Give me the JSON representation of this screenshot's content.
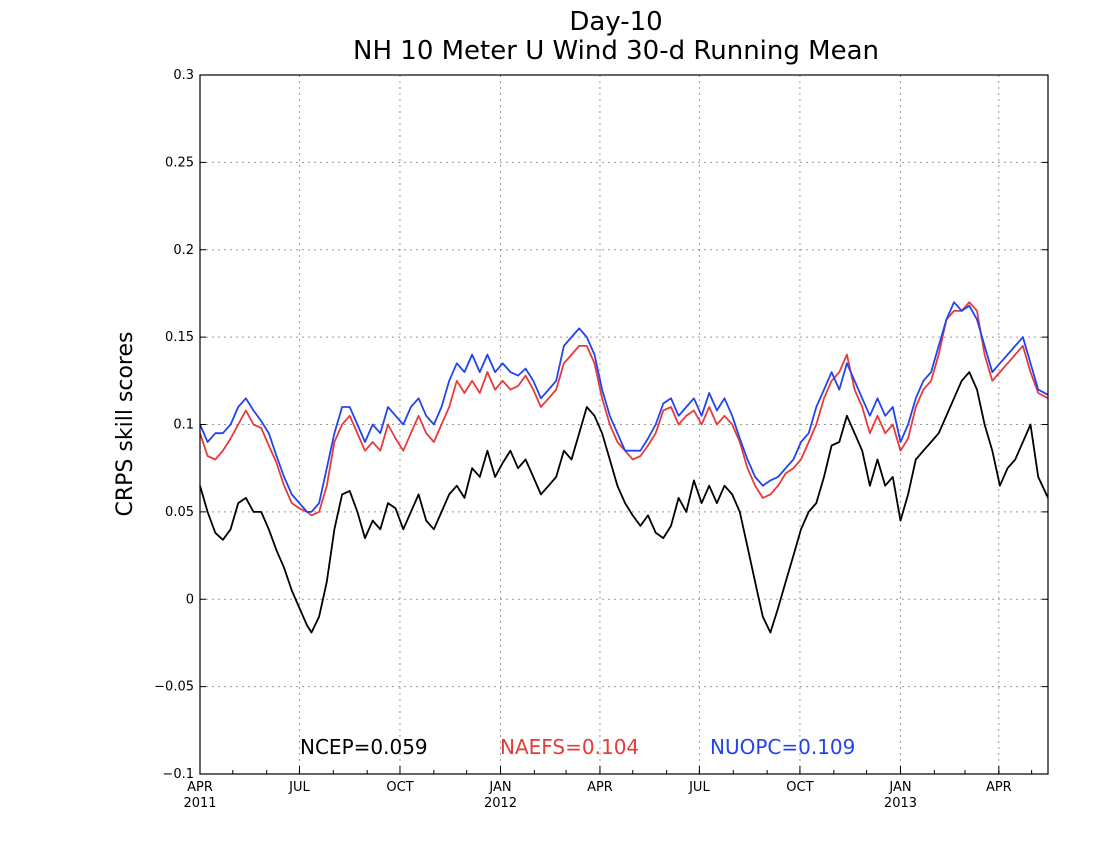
{
  "chart_data": {
    "type": "line",
    "title": "Day-10",
    "subtitle": "NH 10 Meter U Wind 30-d Running Mean",
    "xlabel": "",
    "ylabel": "CRPS skill scores",
    "ylim": [
      -0.1,
      0.3
    ],
    "yticks": [
      -0.1,
      -0.05,
      0,
      0.05,
      0.1,
      0.15,
      0.2,
      0.25,
      0.3
    ],
    "ytick_labels": [
      "−0.1",
      "−0.05",
      "0",
      "0.05",
      "0.1",
      "0.15",
      "0.2",
      "0.25",
      "0.3"
    ],
    "xlim": [
      "2011-04-01",
      "2013-05-16"
    ],
    "xticks": [
      {
        "date": "2011-04-01",
        "label": "APR",
        "year": "2011"
      },
      {
        "date": "2011-07-01",
        "label": "JUL",
        "year": ""
      },
      {
        "date": "2011-10-01",
        "label": "OCT",
        "year": ""
      },
      {
        "date": "2012-01-01",
        "label": "JAN",
        "year": "2012"
      },
      {
        "date": "2012-04-01",
        "label": "APR",
        "year": ""
      },
      {
        "date": "2012-07-01",
        "label": "JUL",
        "year": ""
      },
      {
        "date": "2012-10-01",
        "label": "OCT",
        "year": ""
      },
      {
        "date": "2013-01-01",
        "label": "JAN",
        "year": "2013"
      },
      {
        "date": "2013-04-01",
        "label": "APR",
        "year": ""
      }
    ],
    "grid": true,
    "series": [
      {
        "name": "NCEP",
        "color": "#000000",
        "stat_label": "NCEP=0.059",
        "x": [
          "2011-04-01",
          "2011-04-08",
          "2011-04-15",
          "2011-04-22",
          "2011-04-29",
          "2011-05-06",
          "2011-05-13",
          "2011-05-20",
          "2011-05-27",
          "2011-06-03",
          "2011-06-10",
          "2011-06-17",
          "2011-06-24",
          "2011-07-01",
          "2011-07-08",
          "2011-07-12",
          "2011-07-19",
          "2011-07-26",
          "2011-08-02",
          "2011-08-09",
          "2011-08-16",
          "2011-08-23",
          "2011-08-30",
          "2011-09-06",
          "2011-09-13",
          "2011-09-20",
          "2011-09-27",
          "2011-10-04",
          "2011-10-11",
          "2011-10-18",
          "2011-10-25",
          "2011-11-01",
          "2011-11-08",
          "2011-11-15",
          "2011-11-22",
          "2011-11-29",
          "2011-12-06",
          "2011-12-13",
          "2011-12-20",
          "2011-12-27",
          "2012-01-03",
          "2012-01-10",
          "2012-01-17",
          "2012-01-24",
          "2012-01-31",
          "2012-02-07",
          "2012-02-14",
          "2012-02-21",
          "2012-02-28",
          "2012-03-06",
          "2012-03-13",
          "2012-03-20",
          "2012-03-27",
          "2012-04-03",
          "2012-04-10",
          "2012-04-17",
          "2012-04-24",
          "2012-05-01",
          "2012-05-08",
          "2012-05-15",
          "2012-05-22",
          "2012-05-29",
          "2012-06-05",
          "2012-06-12",
          "2012-06-19",
          "2012-06-26",
          "2012-07-03",
          "2012-07-10",
          "2012-07-17",
          "2012-07-24",
          "2012-07-31",
          "2012-08-07",
          "2012-08-14",
          "2012-08-21",
          "2012-08-28",
          "2012-09-04",
          "2012-09-11",
          "2012-09-18",
          "2012-09-25",
          "2012-10-02",
          "2012-10-09",
          "2012-10-16",
          "2012-10-23",
          "2012-10-30",
          "2012-11-06",
          "2012-11-13",
          "2012-11-20",
          "2012-11-27",
          "2012-12-04",
          "2012-12-11",
          "2012-12-18",
          "2012-12-25",
          "2013-01-01",
          "2013-01-08",
          "2013-01-15",
          "2013-01-22",
          "2013-01-29",
          "2013-02-05",
          "2013-02-12",
          "2013-02-19",
          "2013-02-26",
          "2013-03-05",
          "2013-03-12",
          "2013-03-19",
          "2013-03-26",
          "2013-04-02",
          "2013-04-09",
          "2013-04-16",
          "2013-04-23",
          "2013-04-30",
          "2013-05-07",
          "2013-05-16"
        ],
        "y": [
          0.065,
          0.05,
          0.038,
          0.034,
          0.04,
          0.055,
          0.058,
          0.05,
          0.05,
          0.04,
          0.028,
          0.018,
          0.005,
          -0.005,
          -0.015,
          -0.019,
          -0.01,
          0.01,
          0.04,
          0.06,
          0.062,
          0.05,
          0.035,
          0.045,
          0.04,
          0.055,
          0.052,
          0.04,
          0.05,
          0.06,
          0.045,
          0.04,
          0.05,
          0.06,
          0.065,
          0.058,
          0.075,
          0.07,
          0.085,
          0.07,
          0.078,
          0.085,
          0.075,
          0.08,
          0.07,
          0.06,
          0.065,
          0.07,
          0.085,
          0.08,
          0.095,
          0.11,
          0.105,
          0.095,
          0.08,
          0.065,
          0.055,
          0.048,
          0.042,
          0.048,
          0.038,
          0.035,
          0.042,
          0.058,
          0.05,
          0.068,
          0.055,
          0.065,
          0.055,
          0.065,
          0.06,
          0.05,
          0.03,
          0.01,
          -0.01,
          -0.019,
          -0.005,
          0.01,
          0.025,
          0.04,
          0.05,
          0.055,
          0.07,
          0.088,
          0.09,
          0.105,
          0.095,
          0.085,
          0.065,
          0.08,
          0.065,
          0.07,
          0.045,
          0.06,
          0.08,
          0.085,
          0.09,
          0.095,
          0.105,
          0.115,
          0.125,
          0.13,
          0.12,
          0.1,
          0.085,
          0.065,
          0.075,
          0.08,
          0.09,
          0.1,
          0.07,
          0.058
        ]
      },
      {
        "name": "NAEFS",
        "color": "#e83a3a",
        "stat_label": "NAEFS=0.104",
        "x": [
          "2011-04-01",
          "2011-04-08",
          "2011-04-15",
          "2011-04-22",
          "2011-04-29",
          "2011-05-06",
          "2011-05-13",
          "2011-05-20",
          "2011-05-27",
          "2011-06-03",
          "2011-06-10",
          "2011-06-17",
          "2011-06-24",
          "2011-07-01",
          "2011-07-08",
          "2011-07-12",
          "2011-07-19",
          "2011-07-26",
          "2011-08-02",
          "2011-08-09",
          "2011-08-16",
          "2011-08-23",
          "2011-08-30",
          "2011-09-06",
          "2011-09-13",
          "2011-09-20",
          "2011-09-27",
          "2011-10-04",
          "2011-10-11",
          "2011-10-18",
          "2011-10-25",
          "2011-11-01",
          "2011-11-08",
          "2011-11-15",
          "2011-11-22",
          "2011-11-29",
          "2011-12-06",
          "2011-12-13",
          "2011-12-20",
          "2011-12-27",
          "2012-01-03",
          "2012-01-10",
          "2012-01-17",
          "2012-01-24",
          "2012-01-31",
          "2012-02-07",
          "2012-02-14",
          "2012-02-21",
          "2012-02-28",
          "2012-03-06",
          "2012-03-13",
          "2012-03-20",
          "2012-03-27",
          "2012-04-03",
          "2012-04-10",
          "2012-04-17",
          "2012-04-24",
          "2012-05-01",
          "2012-05-08",
          "2012-05-15",
          "2012-05-22",
          "2012-05-29",
          "2012-06-05",
          "2012-06-12",
          "2012-06-19",
          "2012-06-26",
          "2012-07-03",
          "2012-07-10",
          "2012-07-17",
          "2012-07-24",
          "2012-07-31",
          "2012-08-07",
          "2012-08-14",
          "2012-08-21",
          "2012-08-28",
          "2012-09-04",
          "2012-09-11",
          "2012-09-18",
          "2012-09-25",
          "2012-10-02",
          "2012-10-09",
          "2012-10-16",
          "2012-10-23",
          "2012-10-30",
          "2012-11-06",
          "2012-11-13",
          "2012-11-20",
          "2012-11-27",
          "2012-12-04",
          "2012-12-11",
          "2012-12-18",
          "2012-12-25",
          "2013-01-01",
          "2013-01-08",
          "2013-01-15",
          "2013-01-22",
          "2013-01-29",
          "2013-02-05",
          "2013-02-12",
          "2013-02-19",
          "2013-02-26",
          "2013-03-05",
          "2013-03-12",
          "2013-03-19",
          "2013-03-26",
          "2013-04-02",
          "2013-04-09",
          "2013-04-16",
          "2013-04-23",
          "2013-04-30",
          "2013-05-07",
          "2013-05-16"
        ],
        "y": [
          0.095,
          0.082,
          0.08,
          0.085,
          0.092,
          0.1,
          0.108,
          0.1,
          0.098,
          0.088,
          0.078,
          0.065,
          0.055,
          0.052,
          0.05,
          0.048,
          0.05,
          0.065,
          0.09,
          0.1,
          0.105,
          0.095,
          0.085,
          0.09,
          0.085,
          0.1,
          0.092,
          0.085,
          0.095,
          0.105,
          0.095,
          0.09,
          0.1,
          0.11,
          0.125,
          0.118,
          0.125,
          0.118,
          0.13,
          0.12,
          0.125,
          0.12,
          0.122,
          0.128,
          0.12,
          0.11,
          0.115,
          0.12,
          0.135,
          0.14,
          0.145,
          0.145,
          0.135,
          0.115,
          0.1,
          0.09,
          0.085,
          0.08,
          0.082,
          0.088,
          0.095,
          0.108,
          0.11,
          0.1,
          0.105,
          0.108,
          0.1,
          0.11,
          0.1,
          0.105,
          0.1,
          0.09,
          0.075,
          0.065,
          0.058,
          0.06,
          0.065,
          0.072,
          0.075,
          0.08,
          0.09,
          0.1,
          0.115,
          0.125,
          0.13,
          0.14,
          0.12,
          0.11,
          0.095,
          0.105,
          0.095,
          0.1,
          0.085,
          0.092,
          0.11,
          0.12,
          0.125,
          0.14,
          0.16,
          0.165,
          0.165,
          0.17,
          0.165,
          0.14,
          0.125,
          0.13,
          0.135,
          0.14,
          0.145,
          0.13,
          0.118,
          0.115
        ]
      },
      {
        "name": "NUOPC",
        "color": "#2244ee",
        "stat_label": "NUOPC=0.109",
        "x": [
          "2011-04-01",
          "2011-04-08",
          "2011-04-15",
          "2011-04-22",
          "2011-04-29",
          "2011-05-06",
          "2011-05-13",
          "2011-05-20",
          "2011-05-27",
          "2011-06-03",
          "2011-06-10",
          "2011-06-17",
          "2011-06-24",
          "2011-07-01",
          "2011-07-08",
          "2011-07-12",
          "2011-07-19",
          "2011-07-26",
          "2011-08-02",
          "2011-08-09",
          "2011-08-16",
          "2011-08-23",
          "2011-08-30",
          "2011-09-06",
          "2011-09-13",
          "2011-09-20",
          "2011-09-27",
          "2011-10-04",
          "2011-10-11",
          "2011-10-18",
          "2011-10-25",
          "2011-11-01",
          "2011-11-08",
          "2011-11-15",
          "2011-11-22",
          "2011-11-29",
          "2011-12-06",
          "2011-12-13",
          "2011-12-20",
          "2011-12-27",
          "2012-01-03",
          "2012-01-10",
          "2012-01-17",
          "2012-01-24",
          "2012-01-31",
          "2012-02-07",
          "2012-02-14",
          "2012-02-21",
          "2012-02-28",
          "2012-03-06",
          "2012-03-13",
          "2012-03-20",
          "2012-03-27",
          "2012-04-03",
          "2012-04-10",
          "2012-04-17",
          "2012-04-24",
          "2012-05-01",
          "2012-05-08",
          "2012-05-15",
          "2012-05-22",
          "2012-05-29",
          "2012-06-05",
          "2012-06-12",
          "2012-06-19",
          "2012-06-26",
          "2012-07-03",
          "2012-07-10",
          "2012-07-17",
          "2012-07-24",
          "2012-07-31",
          "2012-08-07",
          "2012-08-14",
          "2012-08-21",
          "2012-08-28",
          "2012-09-04",
          "2012-09-11",
          "2012-09-18",
          "2012-09-25",
          "2012-10-02",
          "2012-10-09",
          "2012-10-16",
          "2012-10-23",
          "2012-10-30",
          "2012-11-06",
          "2012-11-13",
          "2012-11-20",
          "2012-11-27",
          "2012-12-04",
          "2012-12-11",
          "2012-12-18",
          "2012-12-25",
          "2013-01-01",
          "2013-01-08",
          "2013-01-15",
          "2013-01-22",
          "2013-01-29",
          "2013-02-05",
          "2013-02-12",
          "2013-02-19",
          "2013-02-26",
          "2013-03-05",
          "2013-03-12",
          "2013-03-19",
          "2013-03-26",
          "2013-04-02",
          "2013-04-09",
          "2013-04-16",
          "2013-04-23",
          "2013-04-30",
          "2013-05-07",
          "2013-05-16"
        ],
        "y": [
          0.1,
          0.09,
          0.095,
          0.095,
          0.1,
          0.11,
          0.115,
          0.108,
          0.102,
          0.095,
          0.082,
          0.07,
          0.06,
          0.055,
          0.05,
          0.05,
          0.055,
          0.075,
          0.095,
          0.11,
          0.11,
          0.1,
          0.09,
          0.1,
          0.095,
          0.11,
          0.105,
          0.1,
          0.11,
          0.115,
          0.105,
          0.1,
          0.11,
          0.125,
          0.135,
          0.13,
          0.14,
          0.13,
          0.14,
          0.13,
          0.135,
          0.13,
          0.128,
          0.132,
          0.125,
          0.115,
          0.12,
          0.125,
          0.145,
          0.15,
          0.155,
          0.15,
          0.14,
          0.12,
          0.105,
          0.095,
          0.085,
          0.085,
          0.085,
          0.092,
          0.1,
          0.112,
          0.115,
          0.105,
          0.11,
          0.115,
          0.105,
          0.118,
          0.108,
          0.115,
          0.105,
          0.092,
          0.08,
          0.07,
          0.065,
          0.068,
          0.07,
          0.075,
          0.08,
          0.09,
          0.095,
          0.11,
          0.12,
          0.13,
          0.12,
          0.135,
          0.125,
          0.115,
          0.105,
          0.115,
          0.105,
          0.11,
          0.09,
          0.1,
          0.115,
          0.125,
          0.13,
          0.145,
          0.16,
          0.17,
          0.165,
          0.168,
          0.16,
          0.145,
          0.13,
          0.135,
          0.14,
          0.145,
          0.15,
          0.135,
          0.12,
          0.117
        ]
      }
    ]
  }
}
